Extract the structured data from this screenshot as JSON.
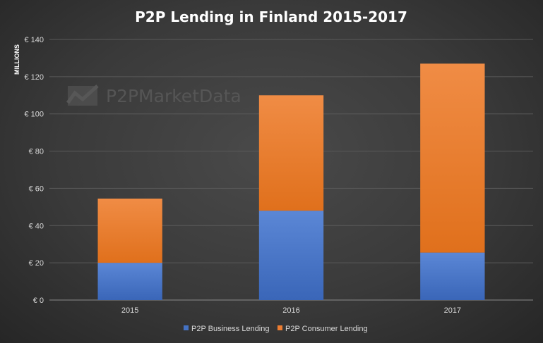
{
  "chart_data": {
    "type": "bar",
    "stacked": true,
    "title": "P2P Lending  in Finland 2015-2017",
    "ylabel": "MILLIONS",
    "categories": [
      "2015",
      "2016",
      "2017"
    ],
    "series": [
      {
        "name": "P2P Business Lending",
        "values": [
          20,
          48,
          25.5
        ],
        "color": "#4472c4"
      },
      {
        "name": "P2P Consumer Lending",
        "values": [
          34.5,
          62,
          101.5
        ],
        "color": "#ed7d31"
      }
    ],
    "ylim": [
      0,
      140
    ],
    "yticks": [
      0,
      20,
      40,
      60,
      80,
      100,
      120,
      140
    ],
    "ytick_labels": [
      "€ 0",
      "€ 20",
      "€ 40",
      "€ 60",
      "€ 80",
      "€ 100",
      "€ 120",
      "€ 140"
    ],
    "grid": true,
    "legend": "bottom",
    "watermark": "P2PMarketData",
    "colors": {
      "background": "#3a3a3a",
      "grid": "#5a5a5a",
      "text": "#d9d9d9"
    }
  }
}
